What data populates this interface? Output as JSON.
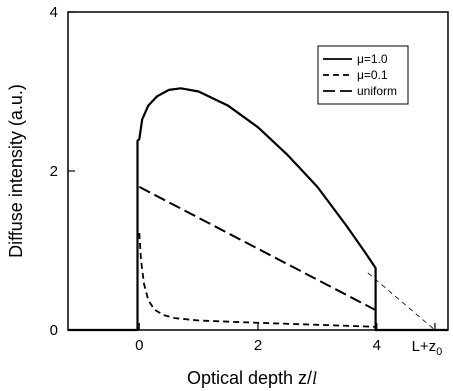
{
  "chart_data": {
    "type": "line",
    "xlabel_prefix": "Optical depth z/",
    "xlabel_italic": "l",
    "ylabel": "Diffuse intensity (a.u.)",
    "xlim": [
      -1.2,
      5.2
    ],
    "ylim": [
      0,
      4
    ],
    "x_ticks": [
      {
        "value": 0,
        "label": "0"
      },
      {
        "value": 2,
        "label": "2"
      },
      {
        "value": 4,
        "label": "4"
      }
    ],
    "x_special_tick": {
      "value": 4.98,
      "label_main": "L+z",
      "label_sub": "0"
    },
    "y_ticks": [
      {
        "value": 0,
        "label": "0"
      },
      {
        "value": 2,
        "label": "2"
      },
      {
        "value": 4,
        "label": "4"
      }
    ],
    "grid": false,
    "legend_position": "top-right",
    "series": [
      {
        "name": "μ=1.0",
        "style": "solid",
        "points": [
          [
            -1.2,
            0
          ],
          [
            -0.03,
            0
          ],
          [
            -0.03,
            2.38
          ],
          [
            0,
            2.4
          ],
          [
            0.05,
            2.65
          ],
          [
            0.15,
            2.82
          ],
          [
            0.3,
            2.94
          ],
          [
            0.5,
            3.02
          ],
          [
            0.7,
            3.04
          ],
          [
            1.0,
            3.0
          ],
          [
            1.5,
            2.82
          ],
          [
            2.0,
            2.55
          ],
          [
            2.5,
            2.2
          ],
          [
            3.0,
            1.8
          ],
          [
            3.5,
            1.3
          ],
          [
            3.8,
            0.98
          ],
          [
            3.98,
            0.78
          ],
          [
            3.98,
            0.0
          ],
          [
            5.2,
            0
          ]
        ]
      },
      {
        "name": "μ=0.1",
        "style": "dashed",
        "points": [
          [
            0.0,
            1.22
          ],
          [
            0.03,
            0.88
          ],
          [
            0.08,
            0.58
          ],
          [
            0.15,
            0.38
          ],
          [
            0.25,
            0.26
          ],
          [
            0.4,
            0.19
          ],
          [
            0.6,
            0.15
          ],
          [
            1.0,
            0.12
          ],
          [
            2.0,
            0.09
          ],
          [
            3.0,
            0.065
          ],
          [
            3.98,
            0.04
          ]
        ]
      },
      {
        "name": "uniform",
        "style": "long-dashed",
        "points": [
          [
            0.0,
            1.8
          ],
          [
            3.98,
            0.25
          ]
        ]
      },
      {
        "name": "",
        "style": "thin-dashed",
        "points": [
          [
            3.85,
            0.72
          ],
          [
            4.98,
            0.0
          ]
        ]
      }
    ]
  }
}
